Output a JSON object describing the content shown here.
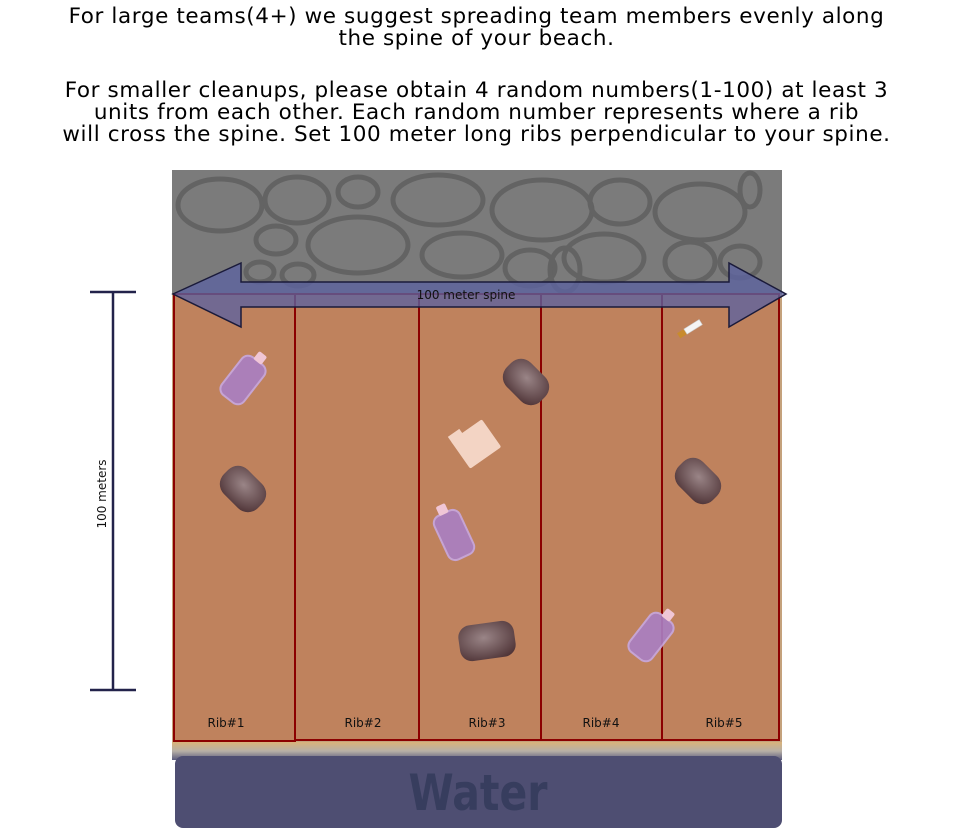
{
  "intro": {
    "paragraph1": [
      "For large teams(4+) we suggest spreading team members evenly along",
      "the spine of your beach."
    ],
    "paragraph2": [
      "For smaller cleanups, please obtain 4 random numbers(1-100) at least 3",
      "units from each other. Each random number represents where a rib",
      "will cross the spine. Set 100 meter long ribs perpendicular to your spine."
    ]
  },
  "diagram": {
    "spine_label": "100 meter spine",
    "height_label": "100 meters",
    "water_label": "Water",
    "ribs": [
      "Rib#1",
      "Rib#2",
      "Rib#3",
      "Rib#4",
      "Rib#5"
    ],
    "colors": {
      "sand": "#bf825d",
      "rib_border": "#8b0000",
      "rocks": "#7b7b7b",
      "water": "#4e4e72",
      "spine_arrow": "#5c63a0",
      "measure_bar": "#22224a"
    }
  }
}
